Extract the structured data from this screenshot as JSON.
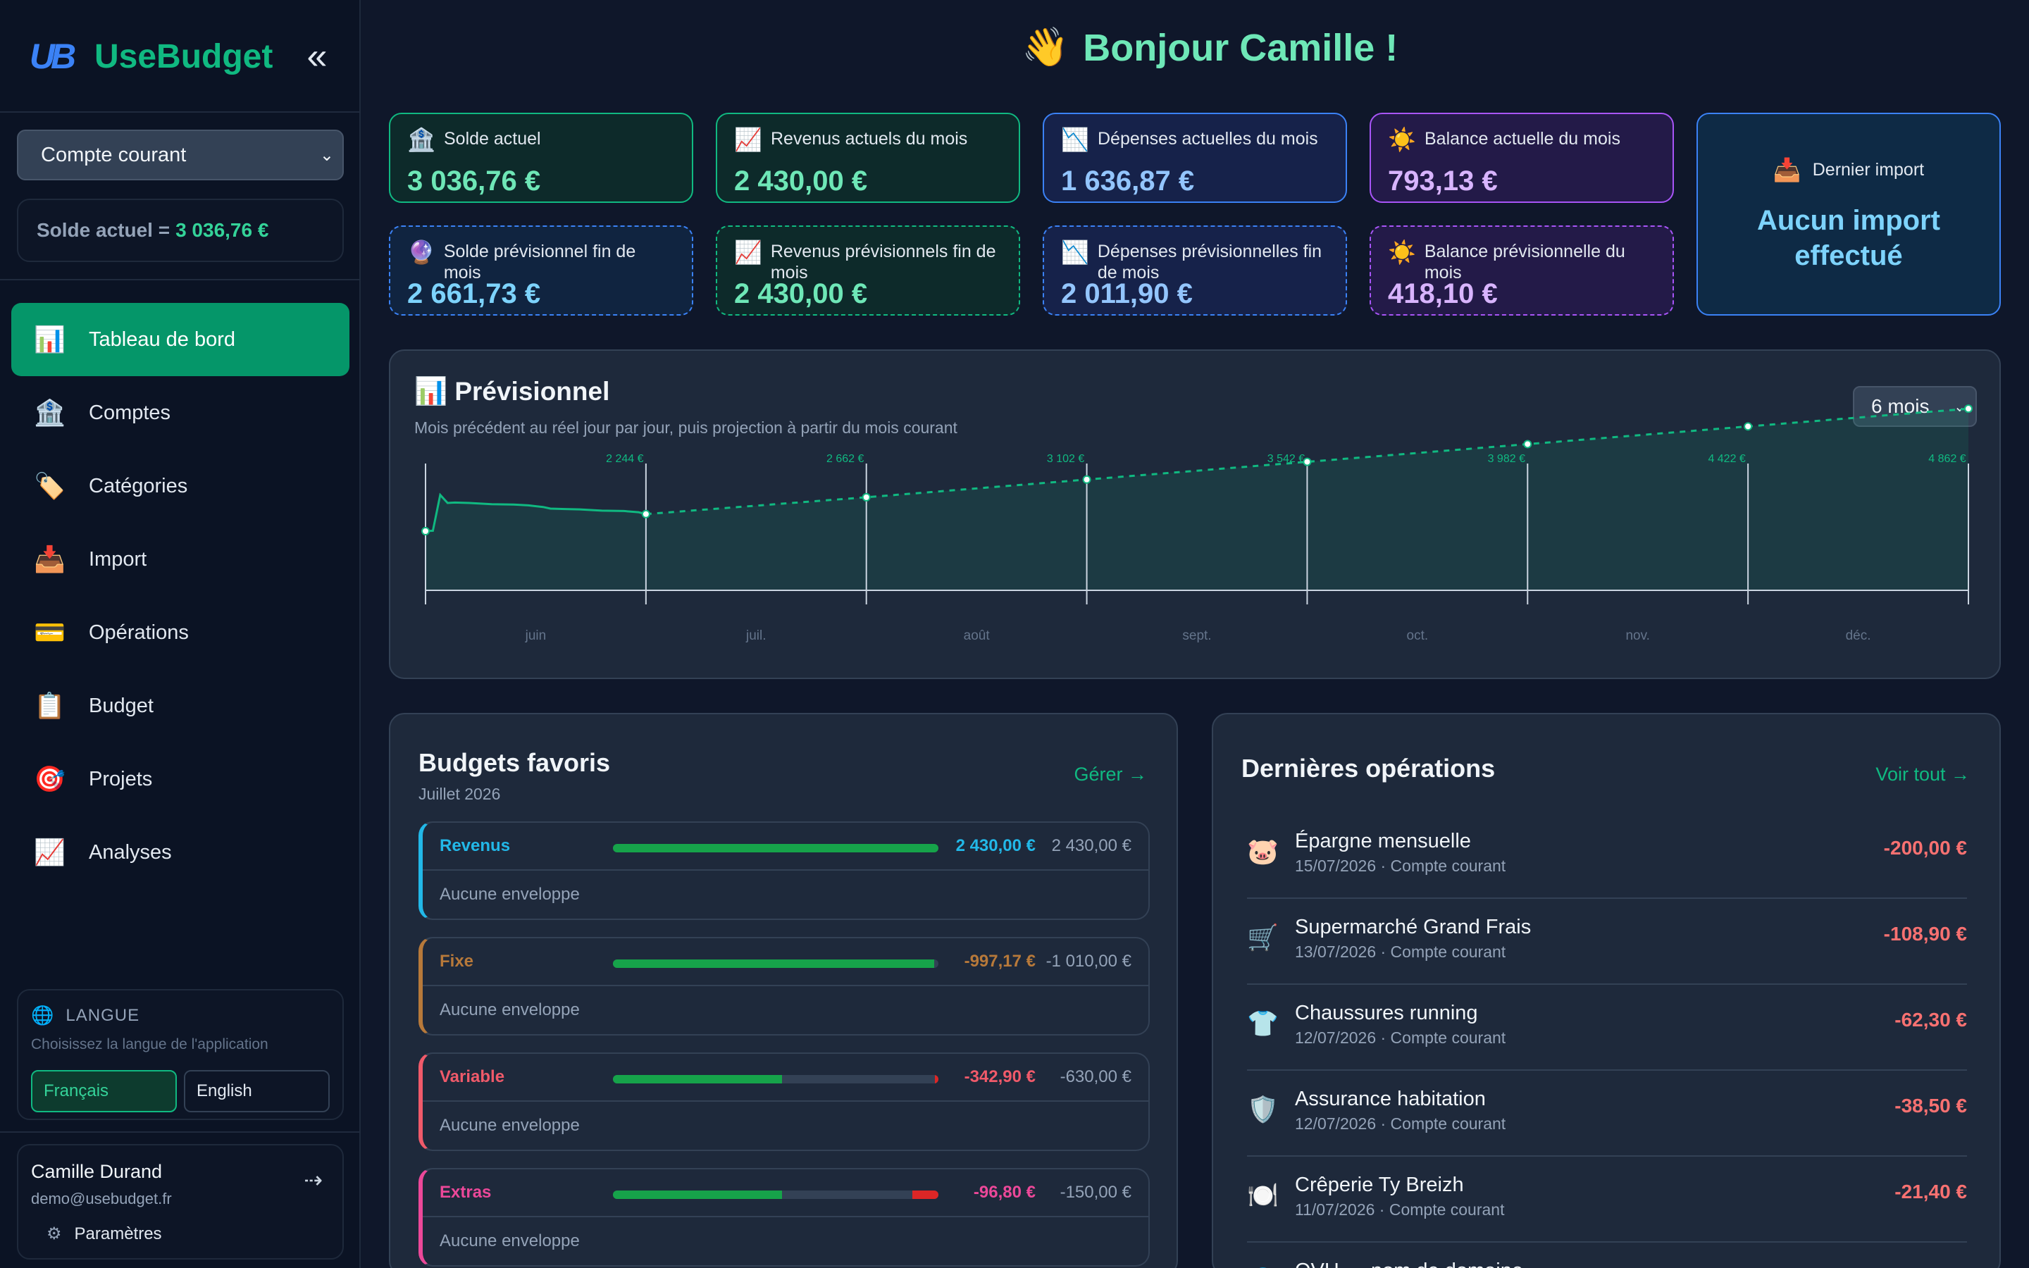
{
  "brand": {
    "logo_text": "UB",
    "name": "UseBudget"
  },
  "account": {
    "selected": "Compte courant",
    "balance_label": "Solde actuel =",
    "balance_value": "3 036,76 €"
  },
  "nav": [
    {
      "icon": "📊",
      "label": "Tableau de bord",
      "active": true
    },
    {
      "icon": "🏦",
      "label": "Comptes"
    },
    {
      "icon": "🏷️",
      "label": "Catégories"
    },
    {
      "icon": "📥",
      "label": "Import"
    },
    {
      "icon": "💳",
      "label": "Opérations"
    },
    {
      "icon": "📋",
      "label": "Budget"
    },
    {
      "icon": "🎯",
      "label": "Projets"
    },
    {
      "icon": "📈",
      "label": "Analyses"
    }
  ],
  "language": {
    "title": "LANGUE",
    "subtitle": "Choisissez la langue de l'application",
    "options": [
      "Français",
      "English"
    ],
    "selected": "Français"
  },
  "user": {
    "name": "Camille Durand",
    "email": "demo@usebudget.fr",
    "settings_label": "Paramètres"
  },
  "greeting": {
    "emoji": "👋",
    "text": "Bonjour Camille !"
  },
  "cards": [
    {
      "icon": "🏦",
      "label": "Solde actuel",
      "value": "3 036,76 €"
    },
    {
      "icon": "📈",
      "label": "Revenus actuels du mois",
      "value": "2 430,00 €"
    },
    {
      "icon": "📉",
      "label": "Dépenses actuelles du mois",
      "value": "1 636,87 €"
    },
    {
      "icon": "☀️",
      "label": "Balance actuelle du mois",
      "value": "793,13 €"
    },
    {
      "icon": "🔮",
      "label": "Solde prévisionnel fin de mois",
      "value": "2 661,73 €"
    },
    {
      "icon": "📈",
      "label": "Revenus prévisionnels fin de mois",
      "value": "2 430,00 €"
    },
    {
      "icon": "📉",
      "label": "Dépenses prévisionnelles fin de mois",
      "value": "2 011,90 €"
    },
    {
      "icon": "☀️",
      "label": "Balance prévisionnelle du mois",
      "value": "418,10 €"
    }
  ],
  "last_import": {
    "icon": "📥",
    "label": "Dernier import",
    "value": "Aucun import effectué"
  },
  "forecast": {
    "icon": "📊",
    "title": "Prévisionnel",
    "subtitle": "Mois précédent au réel jour par jour, puis projection à partir du mois courant",
    "period": "6 mois",
    "colors": {
      "line": "#10b981",
      "axis": "#cbd5e1",
      "label": "#10b981"
    }
  },
  "chart_data": {
    "type": "line",
    "title": "Prévisionnel",
    "month_labels": [
      "juin",
      "juil.",
      "août",
      "sept.",
      "oct.",
      "nov.",
      "déc."
    ],
    "actual_series": [
      {
        "day": 0,
        "value": 1820
      },
      {
        "day": 1,
        "value": 1830
      },
      {
        "day": 2,
        "value": 2720
      },
      {
        "day": 3,
        "value": 2520
      },
      {
        "day": 4,
        "value": 2530
      },
      {
        "day": 6,
        "value": 2520
      },
      {
        "day": 9,
        "value": 2490
      },
      {
        "day": 12,
        "value": 2480
      },
      {
        "day": 14,
        "value": 2460
      },
      {
        "day": 16,
        "value": 2420
      },
      {
        "day": 17,
        "value": 2380
      },
      {
        "day": 19,
        "value": 2370
      },
      {
        "day": 21,
        "value": 2360
      },
      {
        "day": 24,
        "value": 2330
      },
      {
        "day": 27,
        "value": 2320
      },
      {
        "day": 29,
        "value": 2290
      },
      {
        "day": 30,
        "value": 2244
      }
    ],
    "projection": [
      {
        "label": "2 244 €",
        "value": 2244
      },
      {
        "label": "2 662 €",
        "value": 2662
      },
      {
        "label": "3 102 €",
        "value": 3102
      },
      {
        "label": "3 542 €",
        "value": 3542
      },
      {
        "label": "3 982 €",
        "value": 3982
      },
      {
        "label": "4 422 €",
        "value": 4422
      },
      {
        "label": "4 862 €",
        "value": 4862
      }
    ],
    "ylim": [
      0,
      5600
    ]
  },
  "budgets": {
    "title": "Budgets favoris",
    "subtitle": "Juillet 2026",
    "manage_link": "Gérer →",
    "items": [
      {
        "name": "Revenus",
        "spent": "2 430,00 €",
        "planned": "2 430,00 €",
        "progress": 1.0,
        "overflow": 0,
        "color": "#22b8e8",
        "envelope": "Aucune enveloppe"
      },
      {
        "name": "Fixe",
        "spent": "-997,17 €",
        "planned": "-1 010,00 €",
        "progress": 0.987,
        "overflow": 0,
        "color": "#b7793a",
        "envelope": "Aucune enveloppe"
      },
      {
        "name": "Variable",
        "spent": "-342,90 €",
        "planned": "-630,00 €",
        "progress": 0.52,
        "overflow": 0.01,
        "color": "#f05a6a",
        "envelope": "Aucune enveloppe"
      },
      {
        "name": "Extras",
        "spent": "-96,80 €",
        "planned": "-150,00 €",
        "progress": 0.52,
        "overflow": 0.08,
        "color": "#ec4899",
        "envelope": "Aucune enveloppe"
      }
    ]
  },
  "operations": {
    "title": "Dernières opérations",
    "see_all": "Voir tout →",
    "items": [
      {
        "icon": "🐷",
        "name": "Épargne mensuelle",
        "meta": "15/07/2026 · Compte courant",
        "amount": "-200,00 €"
      },
      {
        "icon": "🛒",
        "name": "Supermarché Grand Frais",
        "meta": "13/07/2026 · Compte courant",
        "amount": "-108,90 €"
      },
      {
        "icon": "👕",
        "name": "Chaussures running",
        "meta": "12/07/2026 · Compte courant",
        "amount": "-62,30 €"
      },
      {
        "icon": "🛡️",
        "name": "Assurance habitation",
        "meta": "12/07/2026 · Compte courant",
        "amount": "-38,50 €"
      },
      {
        "icon": "🍽️",
        "name": "Crêperie Ty Breizh",
        "meta": "11/07/2026 · Compte courant",
        "amount": "-21,40 €"
      },
      {
        "icon": "🌐",
        "name": "OVH — nom de domaine",
        "meta": "",
        "amount": ""
      }
    ]
  }
}
